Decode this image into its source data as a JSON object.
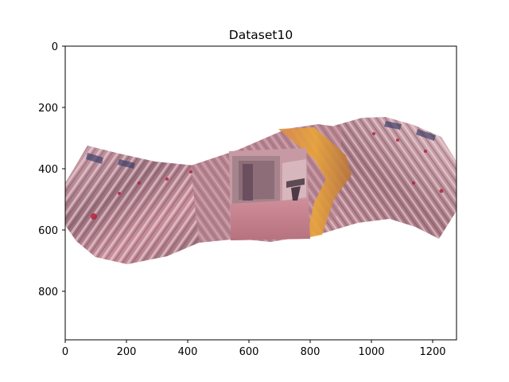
{
  "title": "Dataset10",
  "axes": {
    "x_ticks": [
      "0",
      "200",
      "400",
      "600",
      "800",
      "1000",
      "1200"
    ],
    "y_ticks": [
      "0",
      "200",
      "400",
      "600",
      "800"
    ],
    "x_range": [
      0,
      1280
    ],
    "y_range": [
      960,
      0
    ]
  },
  "image": {
    "description_name": "stitched-panorama",
    "palette": [
      "#c48a96",
      "#9a6f7d",
      "#e3b5bc",
      "#b0475e",
      "#e0922c",
      "#6f5a6e"
    ]
  }
}
